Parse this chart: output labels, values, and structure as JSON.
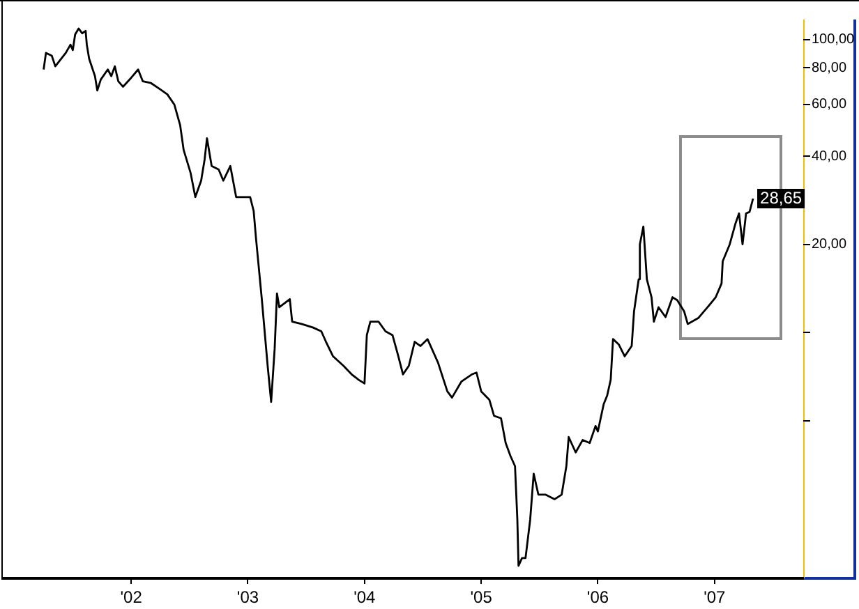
{
  "chart_data": {
    "type": "line",
    "log": true,
    "marker": "none",
    "line_style": "solid",
    "xlim": [
      2000.9,
      2007.76
    ],
    "xticks": [
      {
        "value": 2002,
        "label": "'02"
      },
      {
        "value": 2003,
        "label": "'03"
      },
      {
        "value": 2004,
        "label": "'04"
      },
      {
        "value": 2005,
        "label": "'05"
      },
      {
        "value": 2006,
        "label": "'06"
      },
      {
        "value": 2007,
        "label": "'07"
      }
    ],
    "ylim": [
      1.45,
      117
    ],
    "yticks": [
      {
        "value": 5,
        "label": null
      },
      {
        "value": 10,
        "label": null
      },
      {
        "value": 20,
        "label": "20,00"
      },
      {
        "value": 40,
        "label": "40,00"
      },
      {
        "value": 60,
        "label": "60,00"
      },
      {
        "value": 80,
        "label": "80,00"
      },
      {
        "value": 100,
        "label": "100,00"
      }
    ],
    "annotations": [
      {
        "text": "28,65",
        "x": 2007.33,
        "y": 28.65
      }
    ],
    "series": [
      {
        "color": "#000000",
        "x": [
          2001.25,
          2001.27,
          2001.32,
          2001.35,
          2001.44,
          2001.48,
          2001.5,
          2001.52,
          2001.55,
          2001.58,
          2001.61,
          2001.62,
          2001.64,
          2001.69,
          2001.71,
          2001.74,
          2001.8,
          2001.83,
          2001.86,
          2001.89,
          2001.93,
          2002.0,
          2002.06,
          2002.1,
          2002.17,
          2002.24,
          2002.31,
          2002.37,
          2002.42,
          2002.45,
          2002.51,
          2002.55,
          2002.6,
          2002.63,
          2002.65,
          2002.69,
          2002.75,
          2002.79,
          2002.85,
          2002.9,
          2002.96,
          2003.02,
          2003.05,
          2003.07,
          2003.12,
          2003.17,
          2003.2,
          2003.23,
          2003.25,
          2003.27,
          2003.36,
          2003.38,
          2003.46,
          2003.56,
          2003.63,
          2003.67,
          2003.73,
          2003.82,
          2003.89,
          2003.95,
          2004.0,
          2004.02,
          2004.05,
          2004.12,
          2004.18,
          2004.24,
          2004.29,
          2004.33,
          2004.38,
          2004.43,
          2004.48,
          2004.54,
          2004.63,
          2004.71,
          2004.75,
          2004.83,
          2004.92,
          2004.96,
          2005.0,
          2005.07,
          2005.11,
          2005.17,
          2005.21,
          2005.25,
          2005.29,
          2005.31,
          2005.32,
          2005.35,
          2005.38,
          2005.42,
          2005.45,
          2005.49,
          2005.55,
          2005.63,
          2005.69,
          2005.73,
          2005.75,
          2005.81,
          2005.87,
          2005.93,
          2005.98,
          2006.0,
          2006.05,
          2006.08,
          2006.11,
          2006.13,
          2006.18,
          2006.23,
          2006.29,
          2006.31,
          2006.35,
          2006.36,
          2006.39,
          2006.42,
          2006.46,
          2006.48,
          2006.52,
          2006.58,
          2006.64,
          2006.68,
          2006.74,
          2006.77,
          2006.86,
          2006.94,
          2007.01,
          2007.06,
          2007.07,
          2007.13,
          2007.18,
          2007.21,
          2007.24,
          2007.27,
          2007.3,
          2007.33
        ],
        "values": [
          79,
          90,
          88,
          81,
          90,
          96,
          92,
          104,
          109,
          105,
          107,
          96,
          86,
          75,
          67,
          73,
          79,
          75,
          81,
          72,
          69,
          74,
          79,
          72,
          71,
          68,
          65,
          60,
          51,
          42,
          35,
          29,
          33,
          39,
          46,
          37,
          36,
          33,
          37,
          29,
          29,
          29,
          26,
          21,
          13,
          7.7,
          5.8,
          8.8,
          13.6,
          12.2,
          13,
          10.9,
          10.7,
          10.4,
          10.1,
          9.3,
          8.3,
          7.7,
          7.2,
          6.9,
          6.7,
          9.8,
          10.9,
          10.9,
          10.1,
          9.8,
          8.3,
          7.2,
          7.7,
          9.3,
          9.0,
          9.5,
          7.9,
          6.3,
          6.0,
          6.8,
          7.2,
          7.3,
          6.3,
          5.9,
          5.2,
          5.1,
          4.2,
          3.8,
          3.5,
          2.3,
          1.6,
          1.7,
          1.7,
          2.3,
          3.3,
          2.8,
          2.8,
          2.7,
          2.8,
          3.5,
          4.4,
          3.9,
          4.3,
          4.2,
          4.8,
          4.6,
          5.7,
          6.1,
          6.9,
          9.5,
          9.1,
          8.3,
          9.0,
          11.8,
          15.2,
          20,
          23,
          15.2,
          13.2,
          10.9,
          12.2,
          11.3,
          13.2,
          12.9,
          11.8,
          10.7,
          11.2,
          12.2,
          13.2,
          14.7,
          17.5,
          20,
          23.6,
          25.5,
          20,
          25.5,
          25.8,
          28.65
        ]
      }
    ]
  }
}
